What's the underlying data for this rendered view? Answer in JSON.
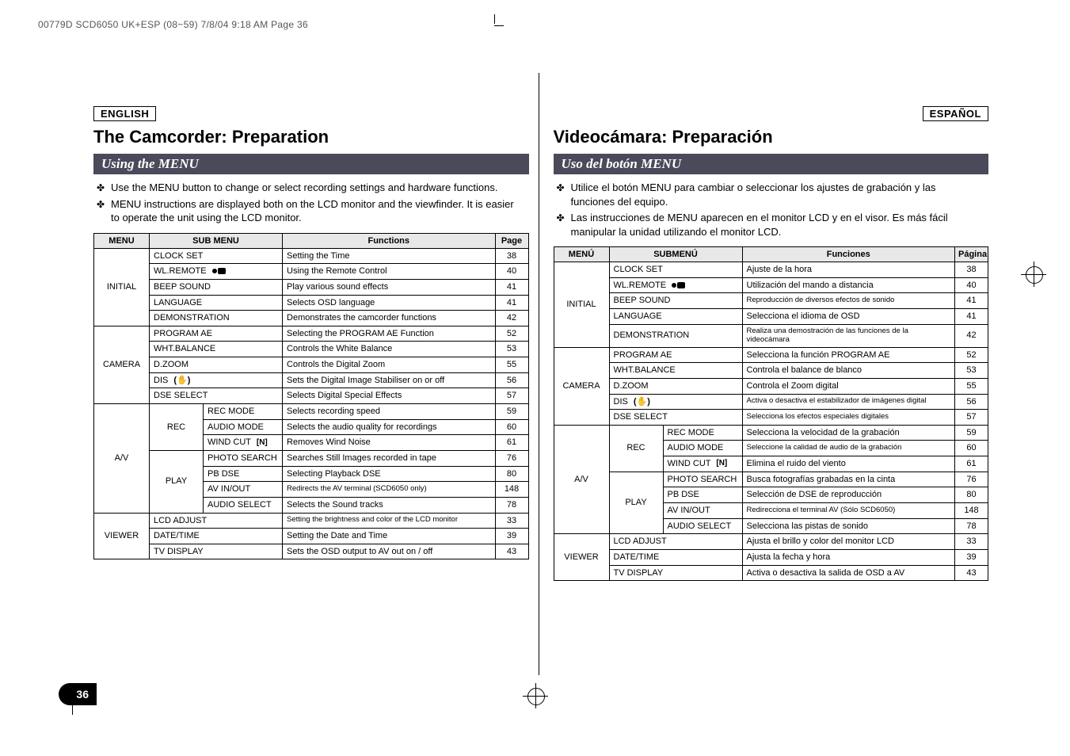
{
  "headerLine": "00779D SCD6050 UK+ESP (08~59)  7/8/04 9:18 AM  Page 36",
  "pageNumber": "36",
  "left": {
    "langLabel": "ENGLISH",
    "title": "The Camcorder: Preparation",
    "section": "Using the MENU",
    "bullets": [
      "Use the MENU button to change or select recording settings and hardware functions.",
      "MENU instructions are displayed both on the LCD monitor and the viewfinder. It is easier to operate the unit using the LCD monitor."
    ],
    "table": {
      "headers": {
        "menu": "MENU",
        "sub": "SUB MENU",
        "func": "Functions",
        "page": "Page"
      },
      "sections": [
        {
          "menu": "INITIAL",
          "rows": [
            {
              "sub": "CLOCK SET",
              "func": "Setting the Time",
              "page": "38"
            },
            {
              "sub": "WL.REMOTE",
              "icon": "remote",
              "func": "Using the Remote Control",
              "page": "40"
            },
            {
              "sub": "BEEP SOUND",
              "func": "Play various sound effects",
              "page": "41"
            },
            {
              "sub": "LANGUAGE",
              "func": "Selects OSD language",
              "page": "41"
            },
            {
              "sub": "DEMONSTRATION",
              "func": "Demonstrates the camcorder functions",
              "page": "42"
            }
          ]
        },
        {
          "menu": "CAMERA",
          "rows": [
            {
              "sub": "PROGRAM AE",
              "func": "Selecting the PROGRAM AE Function",
              "page": "52"
            },
            {
              "sub": "WHT.BALANCE",
              "func": "Controls the White Balance",
              "page": "53"
            },
            {
              "sub": "D.ZOOM",
              "func": "Controls the Digital Zoom",
              "page": "55"
            },
            {
              "sub": "DIS",
              "icon": "dis",
              "func": "Sets the Digital Image Stabiliser on or off",
              "page": "56"
            },
            {
              "sub": "DSE SELECT",
              "func": "Selects Digital Special Effects",
              "page": "57"
            }
          ]
        },
        {
          "menu": "A/V",
          "groups": [
            {
              "group": "REC",
              "rows": [
                {
                  "sub": "REC MODE",
                  "func": "Selects recording speed",
                  "page": "59"
                },
                {
                  "sub": "AUDIO MODE",
                  "func": "Selects the audio quality for recordings",
                  "page": "60"
                },
                {
                  "sub": "WIND CUT",
                  "icon": "windcut",
                  "func": "Removes Wind Noise",
                  "page": "61"
                }
              ]
            },
            {
              "group": "PLAY",
              "rows": [
                {
                  "sub": "PHOTO SEARCH",
                  "func": "Searches Still Images recorded in tape",
                  "page": "76"
                },
                {
                  "sub": "PB DSE",
                  "func": "Selecting Playback DSE",
                  "page": "80"
                },
                {
                  "sub": "AV IN/OUT",
                  "func": "Redirects the AV terminal (SCD6050 only)",
                  "funcTiny": true,
                  "page": "148"
                },
                {
                  "sub": "AUDIO SELECT",
                  "func": "Selects the Sound tracks",
                  "page": "78"
                }
              ]
            }
          ]
        },
        {
          "menu": "VIEWER",
          "rows": [
            {
              "sub": "LCD ADJUST",
              "func": "Setting the brightness and color of the LCD monitor",
              "funcTiny": true,
              "page": "33"
            },
            {
              "sub": "DATE/TIME",
              "func": "Setting the Date and Time",
              "page": "39"
            },
            {
              "sub": "TV DISPLAY",
              "func": "Sets the OSD output to AV out on / off",
              "page": "43"
            }
          ]
        }
      ]
    }
  },
  "right": {
    "langLabel": "ESPAÑOL",
    "title": "Videocámara: Preparación",
    "section": "Uso del botón MENU",
    "bullets": [
      "Utilice el botón MENU para cambiar o seleccionar los ajustes de grabación y las funciones del equipo.",
      "Las instrucciones de MENU aparecen en el monitor LCD y en el visor. Es más fácil manipular la unidad utilizando el monitor LCD."
    ],
    "table": {
      "headers": {
        "menu": "MENÚ",
        "sub": "SUBMENÚ",
        "func": "Funciones",
        "page": "Página"
      },
      "sections": [
        {
          "menu": "INITIAL",
          "rows": [
            {
              "sub": "CLOCK SET",
              "func": "Ajuste de la hora",
              "page": "38"
            },
            {
              "sub": "WL.REMOTE",
              "icon": "remote",
              "func": "Utilización del mando a distancia",
              "page": "40"
            },
            {
              "sub": "BEEP SOUND",
              "func": "Reproducción de diversos efectos de sonido",
              "funcTiny": true,
              "page": "41"
            },
            {
              "sub": "LANGUAGE",
              "func": "Selecciona el idioma de OSD",
              "page": "41"
            },
            {
              "sub": "DEMONSTRATION",
              "func": "Realiza una demostración de las funciones de la videocámara",
              "funcTiny": true,
              "page": "42"
            }
          ]
        },
        {
          "menu": "CAMERA",
          "rows": [
            {
              "sub": "PROGRAM AE",
              "func": "Selecciona la función PROGRAM AE",
              "page": "52"
            },
            {
              "sub": "WHT.BALANCE",
              "func": "Controla el balance de blanco",
              "page": "53"
            },
            {
              "sub": "D.ZOOM",
              "func": "Controla el Zoom digital",
              "page": "55"
            },
            {
              "sub": "DIS",
              "icon": "dis",
              "func": "Activa o desactiva el estabilizador de imágenes digital",
              "funcTiny": true,
              "page": "56"
            },
            {
              "sub": "DSE SELECT",
              "func": "Selecciona los efectos especiales digitales",
              "funcTiny": true,
              "page": "57"
            }
          ]
        },
        {
          "menu": "A/V",
          "groups": [
            {
              "group": "REC",
              "rows": [
                {
                  "sub": "REC MODE",
                  "func": "Selecciona la velocidad de la grabación",
                  "page": "59"
                },
                {
                  "sub": "AUDIO MODE",
                  "func": "Seleccione la calidad de audio de la grabación",
                  "funcTiny": true,
                  "page": "60"
                },
                {
                  "sub": "WIND CUT",
                  "icon": "windcut",
                  "func": "Elimina el ruido del viento",
                  "page": "61"
                }
              ]
            },
            {
              "group": "PLAY",
              "rows": [
                {
                  "sub": "PHOTO SEARCH",
                  "func": "Busca fotografías grabadas en la cinta",
                  "page": "76"
                },
                {
                  "sub": "PB DSE",
                  "func": "Selección de DSE de reproducción",
                  "page": "80"
                },
                {
                  "sub": "AV IN/OUT",
                  "func": "Redirecciona el terminal AV (Sólo SCD6050)",
                  "funcTiny": true,
                  "page": "148"
                },
                {
                  "sub": "AUDIO SELECT",
                  "func": "Selecciona las pistas de sonido",
                  "page": "78"
                }
              ]
            }
          ]
        },
        {
          "menu": "VIEWER",
          "rows": [
            {
              "sub": "LCD ADJUST",
              "func": "Ajusta el brillo y color del monitor LCD",
              "page": "33"
            },
            {
              "sub": "DATE/TIME",
              "func": "Ajusta la fecha y hora",
              "page": "39"
            },
            {
              "sub": "TV DISPLAY",
              "func": "Activa o desactiva la salida de OSD a AV",
              "page": "43"
            }
          ]
        }
      ]
    }
  }
}
